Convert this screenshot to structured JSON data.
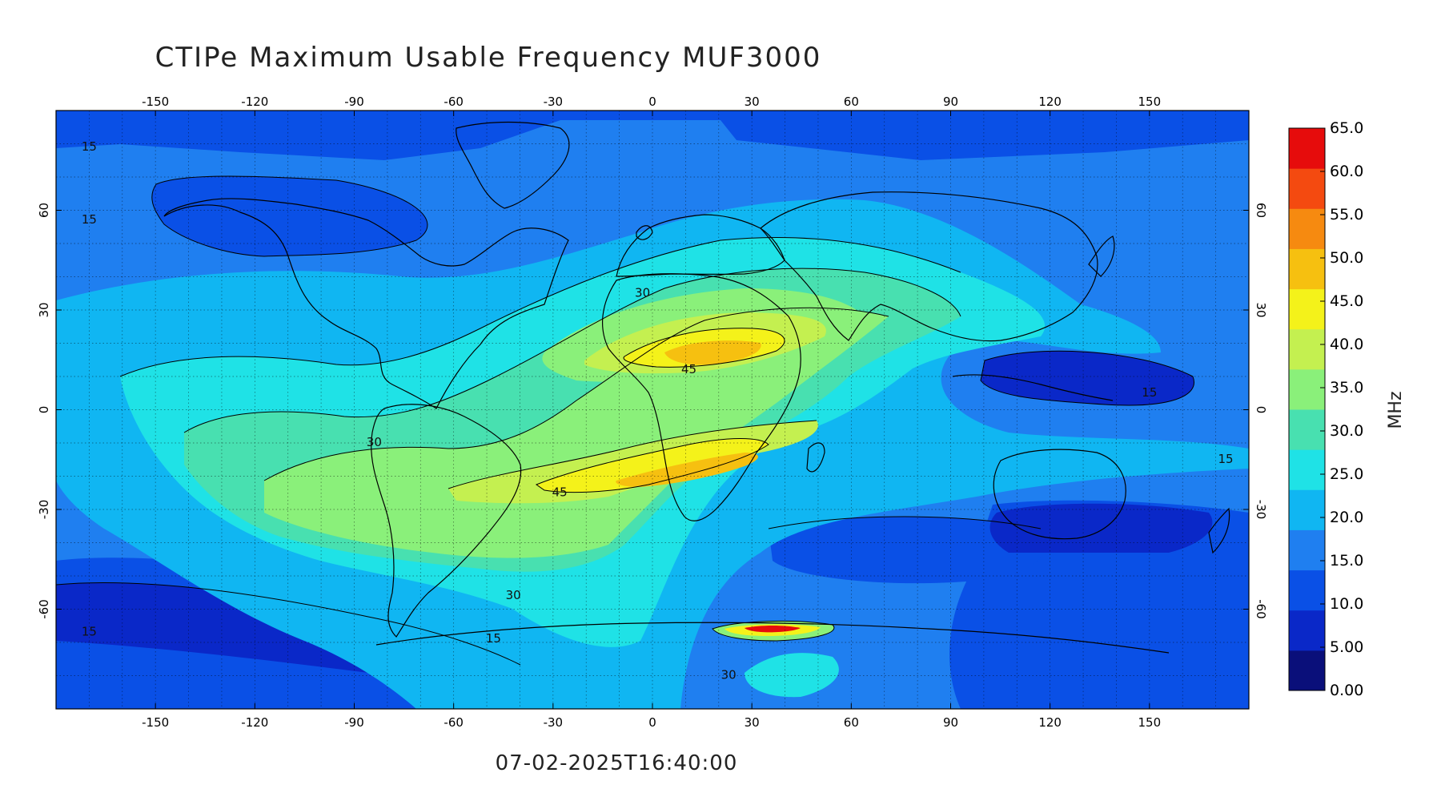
{
  "title": "CTIPe Maximum Usable Frequency MUF3000",
  "timestamp": "07-02-2025T16:40:00",
  "colorbar": {
    "unit": "MHz",
    "min": 0,
    "max": 65,
    "tick_labels": [
      "65.0",
      "60.0",
      "55.0",
      "50.0",
      "45.0",
      "40.0",
      "35.0",
      "30.0",
      "25.0",
      "20.0",
      "15.0",
      "10.0",
      "5.00",
      "0.00"
    ],
    "tick_values": [
      65,
      60,
      55,
      50,
      45,
      40,
      35,
      30,
      25,
      20,
      15,
      10,
      5,
      0
    ],
    "colors": [
      "#0a0f7a",
      "#0a28c8",
      "#0a50e6",
      "#1f7ff0",
      "#10b6f2",
      "#1fe2e6",
      "#48e0b0",
      "#8af07a",
      "#c4f050",
      "#f4f21a",
      "#f6c010",
      "#f68a10",
      "#f44a10",
      "#e60c0c"
    ]
  },
  "axes": {
    "lon_ticks": [
      "-150",
      "-120",
      "-90",
      "-60",
      "-30",
      "0",
      "30",
      "60",
      "90",
      "120",
      "150"
    ],
    "lon_values": [
      -150,
      -120,
      -90,
      -60,
      -30,
      0,
      30,
      60,
      90,
      120,
      150
    ],
    "lat_ticks": [
      "60",
      "30",
      "0",
      "-30",
      "-60"
    ],
    "lat_values": [
      60,
      30,
      0,
      -30,
      -60
    ],
    "lon_range": [
      -180,
      180
    ],
    "lat_range": [
      -90,
      90
    ],
    "grid": true
  },
  "contour_labels": [
    {
      "text": "15",
      "lon": -170,
      "lat": 78
    },
    {
      "text": "15",
      "lon": -170,
      "lat": 56
    },
    {
      "text": "30",
      "lon": -3,
      "lat": 34
    },
    {
      "text": "45",
      "lon": 11,
      "lat": 11
    },
    {
      "text": "30",
      "lon": -84,
      "lat": -11
    },
    {
      "text": "45",
      "lon": -28,
      "lat": -26
    },
    {
      "text": "15",
      "lon": 150,
      "lat": 4
    },
    {
      "text": "15",
      "lon": 173,
      "lat": -16
    },
    {
      "text": "30",
      "lon": -42,
      "lat": -57
    },
    {
      "text": "15",
      "lon": -48,
      "lat": -70
    },
    {
      "text": "15",
      "lon": -170,
      "lat": -68
    },
    {
      "text": "30",
      "lon": 23,
      "lat": -81
    }
  ]
}
